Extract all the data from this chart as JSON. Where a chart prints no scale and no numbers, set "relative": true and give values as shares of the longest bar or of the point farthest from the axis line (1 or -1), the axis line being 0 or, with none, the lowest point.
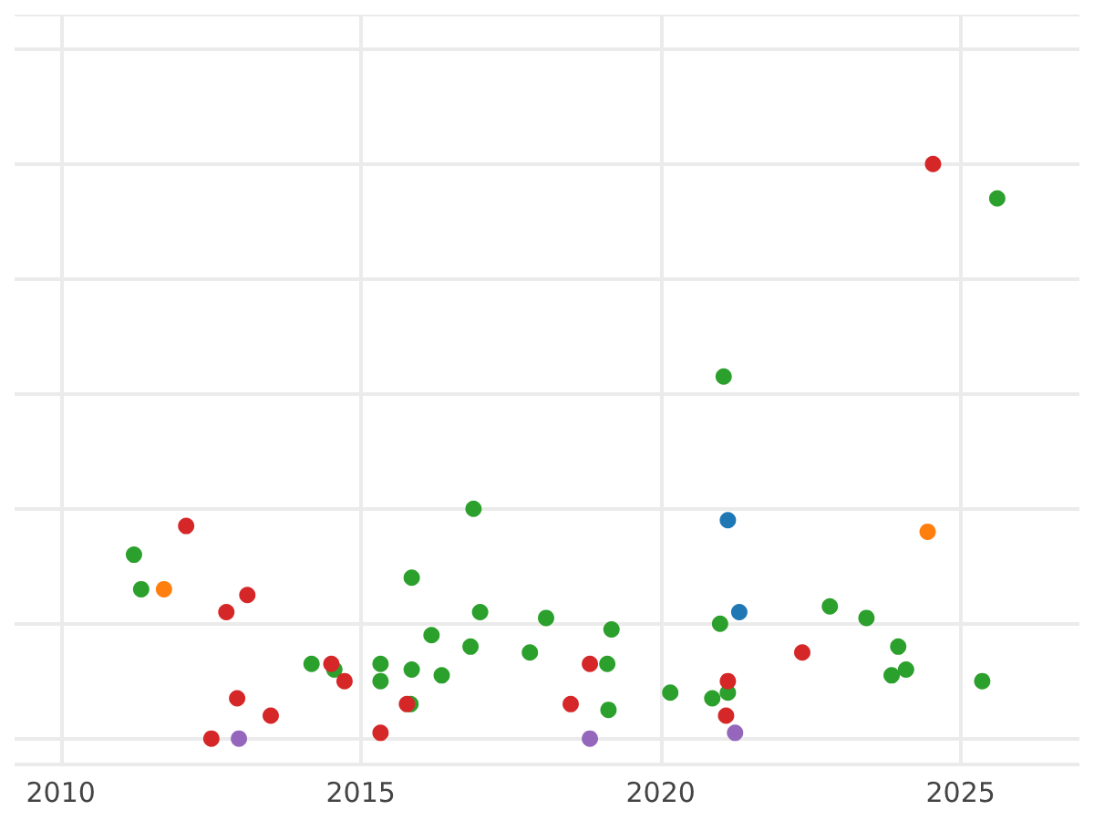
{
  "chart_data": {
    "type": "scatter",
    "relative": true,
    "grid": true,
    "marker": "circle",
    "xlim": [
      2009.23,
      2026.98
    ],
    "xticks": [
      2010,
      2015,
      2020,
      2025
    ],
    "series": [
      {
        "color": "#2ca02c",
        "x": [
          2011.22,
          2011.34,
          2014.18,
          2014.56,
          2015.33,
          2015.33,
          2015.85,
          2015.85,
          2015.83,
          2016.18,
          2016.88,
          2016.99,
          2016.83,
          2016.35,
          2017.82,
          2018.09,
          2019.18,
          2019.11,
          2019.13,
          2020.16,
          2020.86,
          2021.12,
          2020.99,
          2021.05,
          2022.82,
          2023.43,
          2023.96,
          2023.85,
          2024.09,
          2025.36,
          2025.61
        ],
        "values": [
          0.32,
          0.26,
          0.13,
          0.12,
          0.13,
          0.1,
          0.28,
          0.12,
          0.06,
          0.18,
          0.4,
          0.22,
          0.16,
          0.11,
          0.15,
          0.21,
          0.19,
          0.13,
          0.05,
          0.08,
          0.07,
          0.08,
          0.2,
          0.63,
          0.23,
          0.21,
          0.16,
          0.11,
          0.12,
          0.1,
          0.94
        ]
      },
      {
        "color": "#d62728",
        "x": [
          2012.09,
          2013.11,
          2012.76,
          2014.51,
          2014.73,
          2012.94,
          2013.5,
          2012.51,
          2015.77,
          2015.33,
          2018.82,
          2018.5,
          2022.36,
          2021.12,
          2021.09,
          2024.54
        ],
        "values": [
          0.37,
          0.25,
          0.22,
          0.13,
          0.1,
          0.07,
          0.04,
          0,
          0.06,
          0.01,
          0.13,
          0.06,
          0.15,
          0.1,
          0.04,
          1
        ]
      },
      {
        "color": "#ff7f0e",
        "x": [
          2011.72,
          2024.45
        ],
        "values": [
          0.26,
          0.36
        ]
      },
      {
        "color": "#9467bd",
        "x": [
          2012.97,
          2018.82,
          2021.24
        ],
        "values": [
          0,
          0,
          0.01
        ]
      },
      {
        "color": "#1f77b4",
        "x": [
          2021.12,
          2021.31
        ],
        "values": [
          0.38,
          0.22
        ]
      }
    ]
  }
}
